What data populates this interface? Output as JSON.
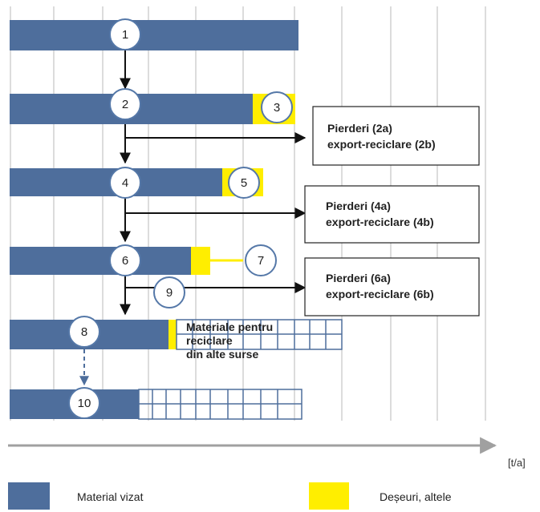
{
  "colors": {
    "material": "#4e6e9c",
    "waste": "#ffee00",
    "grid": "#b8b8b8",
    "axis": "#a0a0a0",
    "circle_border": "#5578a8",
    "arrow": "#111111"
  },
  "nodes": [
    "1",
    "2",
    "3",
    "4",
    "5",
    "6",
    "7",
    "8",
    "9",
    "10"
  ],
  "boxes": [
    {
      "line1": "Pierderi (2a)",
      "line2": "export-reciclare (2b)"
    },
    {
      "line1": "Pierderi (4a)",
      "line2": "export-reciclare (4b)"
    },
    {
      "line1": "Pierderi (6a)",
      "line2": "export-reciclare (6b)"
    }
  ],
  "recycled_label": {
    "line1": "Materiale pentru",
    "line2": "reciclare",
    "line3": "din alte surse"
  },
  "axis_unit": "[t/a]",
  "legend": {
    "material": "Material vizat",
    "waste": "Deșeuri, altele"
  }
}
